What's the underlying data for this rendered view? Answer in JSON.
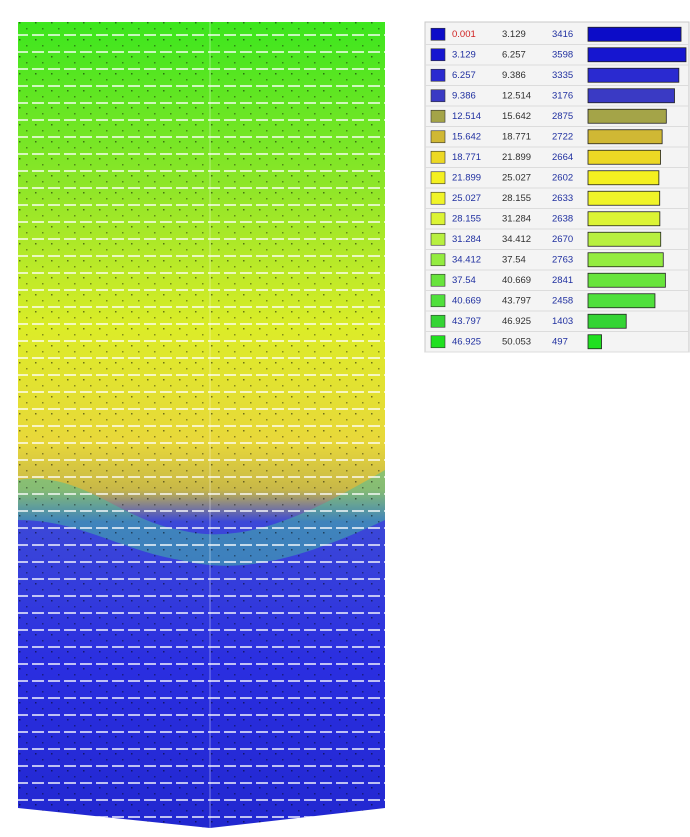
{
  "legend": {
    "rows": [
      {
        "from": "0.001",
        "to": "3.129",
        "count": 3416,
        "color": "#0c0cc8"
      },
      {
        "from": "3.129",
        "to": "6.257",
        "count": 3598,
        "color": "#1616d0"
      },
      {
        "from": "6.257",
        "to": "9.386",
        "count": 3335,
        "color": "#2a2ad0"
      },
      {
        "from": "9.386",
        "to": "12.514",
        "count": 3176,
        "color": "#3a3ac4"
      },
      {
        "from": "12.514",
        "to": "15.642",
        "count": 2875,
        "color": "#a4a448"
      },
      {
        "from": "15.642",
        "to": "18.771",
        "count": 2722,
        "color": "#d0b834"
      },
      {
        "from": "18.771",
        "to": "21.899",
        "count": 2664,
        "color": "#ecd824"
      },
      {
        "from": "21.899",
        "to": "25.027",
        "count": 2602,
        "color": "#f4f020"
      },
      {
        "from": "25.027",
        "to": "28.155",
        "count": 2633,
        "color": "#f0f428"
      },
      {
        "from": "28.155",
        "to": "31.284",
        "count": 2638,
        "color": "#dcf434"
      },
      {
        "from": "31.284",
        "to": "34.412",
        "count": 2670,
        "color": "#b8f040"
      },
      {
        "from": "34.412",
        "to": "37.54",
        "count": 2763,
        "color": "#94ec40"
      },
      {
        "from": "37.54",
        "to": "40.669",
        "count": 2841,
        "color": "#68e43c"
      },
      {
        "from": "40.669",
        "to": "43.797",
        "count": 2458,
        "color": "#50e03c"
      },
      {
        "from": "43.797",
        "to": "46.925",
        "count": 1403,
        "color": "#34d434"
      },
      {
        "from": "46.925",
        "to": "50.053",
        "count": 497,
        "color": "#20e020"
      }
    ]
  }
}
